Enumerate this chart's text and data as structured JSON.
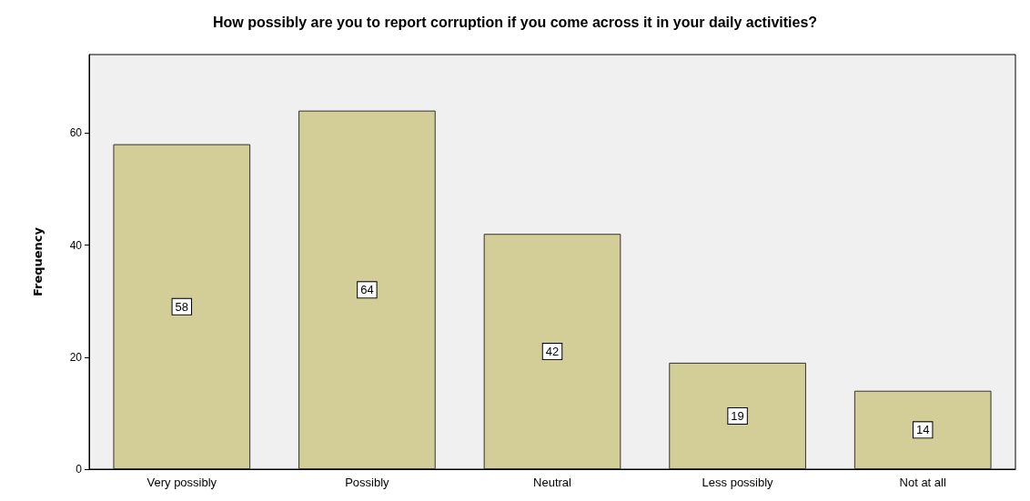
{
  "chart_data": {
    "type": "bar",
    "title": "How possibly are you to report corruption if you come across it in your daily activities?",
    "ylabel": "Frequency",
    "categories": [
      "Very possibly",
      "Possibly",
      "Neutral",
      "Less possibly",
      "Not at all"
    ],
    "values": [
      58,
      64,
      42,
      19,
      14
    ],
    "color": "#d3ce97",
    "ylim": [
      0,
      74
    ],
    "yticks": [
      0,
      20,
      40,
      60
    ],
    "grid": false,
    "data_labels": true
  }
}
